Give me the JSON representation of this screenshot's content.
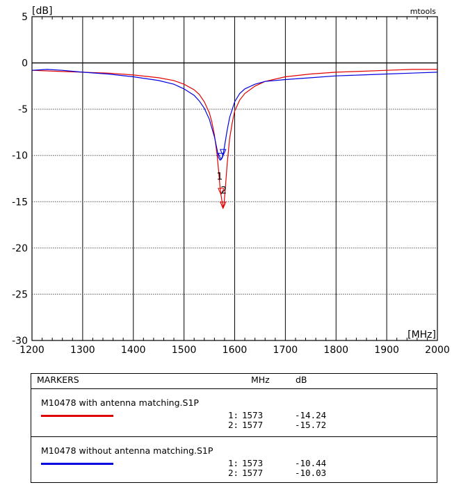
{
  "chart_data": {
    "type": "line",
    "brand": "mtools",
    "ylabel": "[dB]",
    "xlabel": "[MHz]",
    "xlim": [
      1200,
      2000
    ],
    "ylim": [
      -30,
      5
    ],
    "x_ticks": [
      1200,
      1300,
      1400,
      1500,
      1600,
      1700,
      1800,
      1900,
      2000
    ],
    "y_ticks": [
      5,
      0,
      -5,
      -10,
      -15,
      -20,
      -25,
      -30
    ],
    "grid": true,
    "series": [
      {
        "name": "M10478 with antenna matching.S1P",
        "color": "#e00000",
        "x": [
          1200,
          1250,
          1300,
          1350,
          1400,
          1450,
          1480,
          1500,
          1520,
          1530,
          1540,
          1550,
          1555,
          1560,
          1565,
          1568,
          1571,
          1573,
          1575,
          1577,
          1579,
          1582,
          1585,
          1590,
          1595,
          1600,
          1610,
          1620,
          1640,
          1660,
          1700,
          1750,
          1800,
          1850,
          1900,
          1950,
          2000
        ],
        "y": [
          -0.8,
          -0.9,
          -1.0,
          -1.1,
          -1.3,
          -1.6,
          -1.9,
          -2.3,
          -2.9,
          -3.4,
          -4.2,
          -5.4,
          -6.4,
          -7.8,
          -9.8,
          -11.5,
          -13.4,
          -14.24,
          -15.0,
          -15.72,
          -15.2,
          -13.2,
          -11.0,
          -8.2,
          -6.5,
          -5.2,
          -4.0,
          -3.3,
          -2.5,
          -2.0,
          -1.5,
          -1.2,
          -1.0,
          -0.9,
          -0.8,
          -0.7,
          -0.7
        ]
      },
      {
        "name": "M10478 without antenna matching.S1P",
        "color": "#0000e0",
        "x": [
          1200,
          1230,
          1260,
          1300,
          1350,
          1400,
          1450,
          1480,
          1500,
          1520,
          1530,
          1540,
          1550,
          1560,
          1565,
          1568,
          1571,
          1573,
          1575,
          1577,
          1580,
          1585,
          1590,
          1600,
          1610,
          1620,
          1640,
          1660,
          1700,
          1750,
          1800,
          1850,
          1900,
          1950,
          2000
        ],
        "y": [
          -0.8,
          -0.7,
          -0.8,
          -1.0,
          -1.2,
          -1.5,
          -1.9,
          -2.3,
          -2.8,
          -3.5,
          -4.1,
          -4.9,
          -6.1,
          -8.0,
          -9.3,
          -10.2,
          -10.5,
          -10.44,
          -10.3,
          -10.03,
          -9.0,
          -7.3,
          -5.9,
          -4.2,
          -3.3,
          -2.8,
          -2.3,
          -2.0,
          -1.8,
          -1.6,
          -1.4,
          -1.3,
          -1.2,
          -1.1,
          -1.0
        ]
      }
    ],
    "markers": [
      {
        "id": "1",
        "freq": 1573
      },
      {
        "id": "2",
        "freq": 1577
      }
    ]
  },
  "markers_table": {
    "title": "MARKERS",
    "col_freq": "MHz",
    "col_db": "dB",
    "groups": [
      {
        "file": "M10478 with antenna matching.S1P",
        "color": "#e00000",
        "rows": [
          {
            "idx": "1:",
            "freq": "1573",
            "db": "-14.24"
          },
          {
            "idx": "2:",
            "freq": "1577",
            "db": "-15.72"
          }
        ]
      },
      {
        "file": "M10478 without antenna matching.S1P",
        "color": "#0000e0",
        "rows": [
          {
            "idx": "1:",
            "freq": "1573",
            "db": "-10.44"
          },
          {
            "idx": "2:",
            "freq": "1577",
            "db": "-10.03"
          }
        ]
      }
    ]
  }
}
